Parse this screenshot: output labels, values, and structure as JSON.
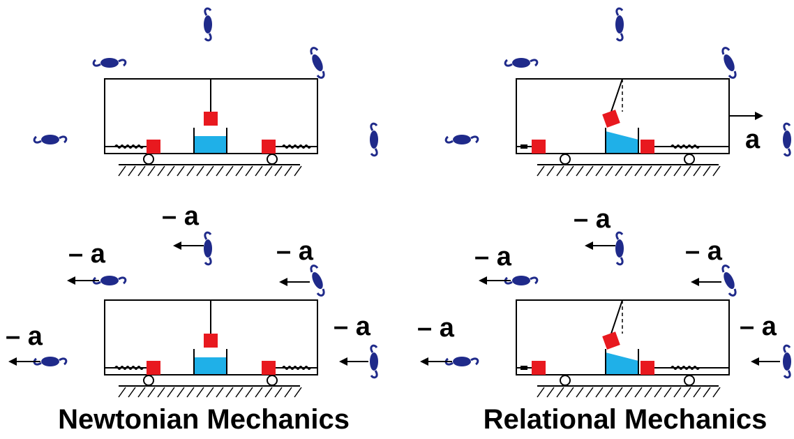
{
  "captions": {
    "left": "Newtonian Mechanics",
    "right": "Relational Mechanics"
  },
  "labels": {
    "accel": "a",
    "neg_accel": "– a"
  },
  "colors": {
    "galaxy": "#1f2a8a",
    "block": "#e8191f",
    "water": "#1fb0e8",
    "line": "#000000"
  }
}
